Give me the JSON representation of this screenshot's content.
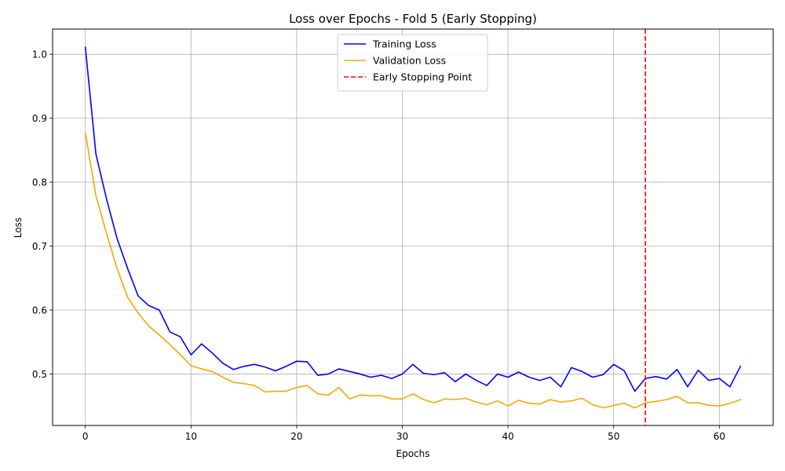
{
  "chart_data": {
    "type": "line",
    "title": "Loss over Epochs - Fold 5 (Early Stopping)",
    "xlabel": "Epochs",
    "ylabel": "Loss",
    "xlim": [
      -3.1,
      65.1
    ],
    "ylim": [
      0.4195,
      1.0395
    ],
    "xticks": [
      0,
      10,
      20,
      30,
      40,
      50,
      60
    ],
    "xtick_labels": [
      "0",
      "10",
      "20",
      "30",
      "40",
      "50",
      "60"
    ],
    "yticks": [
      0.5,
      0.6,
      0.7,
      0.8,
      0.9,
      1.0
    ],
    "ytick_labels": [
      "0.5",
      "0.6",
      "0.7",
      "0.8",
      "0.9",
      "1.0"
    ],
    "grid": true,
    "legend_position": "upper center",
    "x": [
      0,
      1,
      2,
      3,
      4,
      5,
      6,
      7,
      8,
      9,
      10,
      11,
      12,
      13,
      14,
      15,
      16,
      17,
      18,
      19,
      20,
      21,
      22,
      23,
      24,
      25,
      26,
      27,
      28,
      29,
      30,
      31,
      32,
      33,
      34,
      35,
      36,
      37,
      38,
      39,
      40,
      41,
      42,
      43,
      44,
      45,
      46,
      47,
      48,
      49,
      50,
      51,
      52,
      53,
      54,
      55,
      56,
      57,
      58,
      59,
      60,
      61,
      62
    ],
    "series": [
      {
        "name": "Training Loss",
        "color": "#0000ff",
        "style": "solid",
        "values": [
          1.011,
          0.844,
          0.774,
          0.712,
          0.665,
          0.622,
          0.607,
          0.6,
          0.566,
          0.558,
          0.53,
          0.547,
          0.533,
          0.517,
          0.507,
          0.512,
          0.515,
          0.511,
          0.505,
          0.512,
          0.52,
          0.519,
          0.498,
          0.5,
          0.508,
          0.504,
          0.5,
          0.495,
          0.498,
          0.493,
          0.5,
          0.515,
          0.501,
          0.499,
          0.502,
          0.488,
          0.5,
          0.49,
          0.482,
          0.5,
          0.495,
          0.503,
          0.495,
          0.49,
          0.495,
          0.48,
          0.51,
          0.504,
          0.495,
          0.499,
          0.515,
          0.505,
          0.473,
          0.493,
          0.496,
          0.492,
          0.507,
          0.48,
          0.506,
          0.49,
          0.493,
          0.48,
          0.512
        ]
      },
      {
        "name": "Validation Loss",
        "color": "#ffa500",
        "style": "solid",
        "values": [
          0.877,
          0.779,
          0.72,
          0.665,
          0.62,
          0.595,
          0.575,
          0.561,
          0.546,
          0.53,
          0.513,
          0.508,
          0.504,
          0.495,
          0.487,
          0.485,
          0.482,
          0.472,
          0.473,
          0.473,
          0.479,
          0.482,
          0.469,
          0.467,
          0.479,
          0.461,
          0.467,
          0.466,
          0.466,
          0.461,
          0.461,
          0.469,
          0.46,
          0.455,
          0.461,
          0.46,
          0.462,
          0.456,
          0.452,
          0.458,
          0.45,
          0.459,
          0.454,
          0.453,
          0.46,
          0.456,
          0.458,
          0.462,
          0.452,
          0.447,
          0.451,
          0.454,
          0.447,
          0.455,
          0.457,
          0.46,
          0.465,
          0.455,
          0.455,
          0.451,
          0.45,
          0.454,
          0.46
        ]
      }
    ],
    "vlines": [
      {
        "name": "Early Stopping Point",
        "x": 53,
        "color": "#ff0000",
        "style": "dashed"
      }
    ]
  }
}
